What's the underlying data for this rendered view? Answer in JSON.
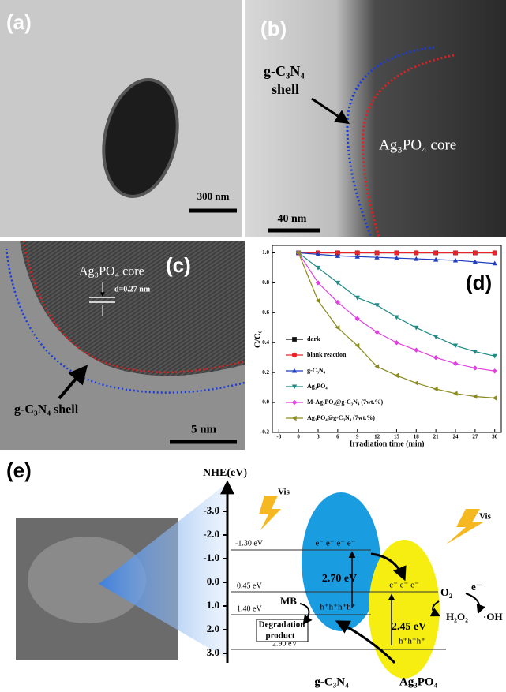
{
  "panels": {
    "a": {
      "label": "(a)",
      "scale_bar": "300 nm"
    },
    "b": {
      "label": "(b)",
      "shell_label": [
        "g-C₃N₄",
        "shell"
      ],
      "core_label": "Ag₃PO₄ core",
      "scale_bar": "40 nm"
    },
    "c": {
      "label": "(c)",
      "core_label": "Ag₃PO₄ core",
      "spacing": "d=0.27 nm",
      "shell_label": "g-C₃N₄ shell",
      "scale_bar": "5 nm"
    },
    "d": {
      "label": "(d)"
    },
    "e": {
      "label": "(e)",
      "axis_title": "NHE(eV)",
      "axis_labels": [
        "-3.0",
        "-2.0",
        "-1.0",
        "0.0",
        "1.0",
        "2.0",
        "3.0"
      ],
      "levels": [
        "-1.30 eV",
        "0.45 eV",
        "1.40 eV",
        "2.90 eV"
      ],
      "light": [
        "Vis",
        "Vis"
      ],
      "gcn": {
        "electrons": "e⁻ e⁻ e⁻ e⁻",
        "gap": "2.70 eV",
        "holes": "h⁺h⁺h⁺h⁺",
        "name": "g-C₃N₄"
      },
      "apo": {
        "electrons": "e⁻ e⁻ e⁻",
        "gap": "2.45 eV",
        "holes": "h⁺h⁺h⁺",
        "name": "Ag₃PO₄"
      },
      "reactions": {
        "o2": "O₂",
        "e": "e⁻",
        "h2o2": "H₂O₂",
        "oh": "·OH",
        "mb": "MB",
        "product": [
          "Degradation",
          "product"
        ]
      }
    }
  },
  "chart_data": {
    "type": "line",
    "x_label": "Irradiation time (min)",
    "y_label": "C/C₀",
    "x": [
      0,
      3,
      6,
      9,
      12,
      15,
      18,
      21,
      24,
      27,
      30
    ],
    "xlim": [
      -4,
      31
    ],
    "xticks": [
      -3,
      0,
      3,
      6,
      9,
      12,
      15,
      18,
      21,
      24,
      27,
      30
    ],
    "ylim": [
      -0.2,
      1.05
    ],
    "yticks": [
      -0.2,
      {
        "value": 0,
        "label": "0.0"
      },
      0.2,
      0.4,
      0.6,
      0.8,
      {
        "value": 1,
        "label": "1.0"
      }
    ],
    "series": [
      {
        "name": "dark",
        "color": "#111111",
        "marker": "square",
        "values": [
          1,
          1,
          1,
          1,
          1,
          1,
          1,
          1,
          1,
          1,
          1
        ]
      },
      {
        "name": "blank reaction",
        "color": "#e8242a",
        "marker": "circle",
        "values": [
          1,
          1,
          1,
          1,
          1,
          1,
          1,
          1,
          1,
          1,
          1
        ]
      },
      {
        "name": "g-C₃N₄",
        "color": "#1f3fbf",
        "marker": "triangle-up",
        "values": [
          1,
          0.99,
          0.98,
          0.975,
          0.97,
          0.965,
          0.96,
          0.955,
          0.95,
          0.94,
          0.93
        ]
      },
      {
        "name": "Ag₃PO₄",
        "color": "#1f8a84",
        "marker": "triangle-down",
        "values": [
          1,
          0.9,
          0.8,
          0.7,
          0.65,
          0.57,
          0.5,
          0.44,
          0.38,
          0.34,
          0.31
        ]
      },
      {
        "name": "M-Ag₃PO₄@g-C₃N₄ (7wt.%)",
        "color": "#e040e0",
        "marker": "diamond",
        "values": [
          1,
          0.8,
          0.67,
          0.56,
          0.47,
          0.4,
          0.35,
          0.3,
          0.26,
          0.23,
          0.21
        ]
      },
      {
        "name": "Ag₃PO₄@g-C₃N₄ (7wt.%)",
        "color": "#8a8a20",
        "marker": "triangle-left",
        "values": [
          1,
          0.68,
          0.5,
          0.38,
          0.24,
          0.18,
          0.13,
          0.09,
          0.06,
          0.04,
          0.03
        ]
      }
    ]
  }
}
